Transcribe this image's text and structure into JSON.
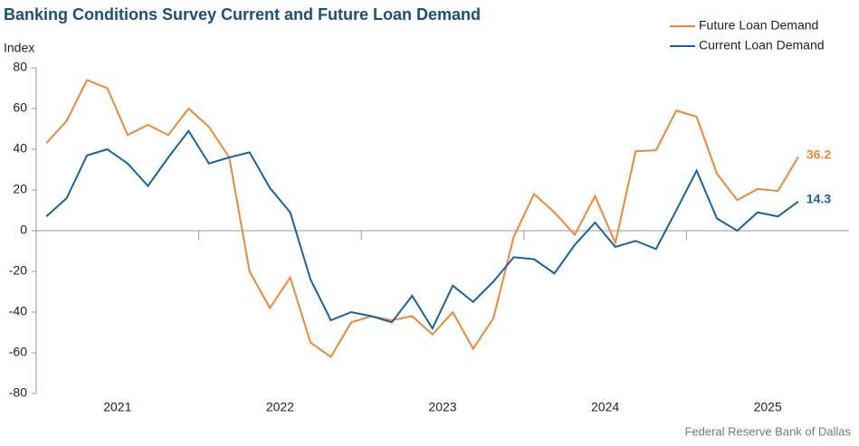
{
  "chart_data": {
    "type": "line",
    "title": "Banking Conditions Survey Current and Future Loan Demand",
    "y_label": "Index",
    "source": "Federal Reserve Bank of Dallas",
    "categories": [
      "2021",
      null,
      null,
      null,
      null,
      null,
      null,
      null,
      "2022",
      null,
      null,
      null,
      null,
      null,
      null,
      null,
      "2023",
      null,
      null,
      null,
      null,
      null,
      null,
      null,
      "2024",
      null,
      null,
      null,
      null,
      null,
      null,
      null,
      "2025",
      null,
      null,
      null,
      null,
      null
    ],
    "series": [
      {
        "name": "Future Loan Demand",
        "color": "#f0883a",
        "values": [
          43,
          54,
          74,
          70,
          47,
          52,
          47,
          60,
          51,
          36,
          -20,
          -38,
          -23,
          -55,
          -62,
          -45,
          -42,
          -44,
          -42,
          -51,
          -40,
          -58,
          -43,
          -3,
          18,
          9,
          -2,
          17,
          -6,
          39,
          39.5,
          59,
          56,
          28,
          15,
          20.5,
          19.5,
          36.2
        ]
      },
      {
        "name": "Current Loan Demand",
        "color": "#1a63a0",
        "values": [
          7,
          16,
          37,
          40,
          33,
          22,
          36,
          49,
          33,
          36,
          38.5,
          21,
          9,
          -24,
          -44,
          -40,
          -42,
          -45,
          -32,
          -48,
          -27,
          -35,
          -25,
          -13,
          -14,
          -21,
          -7,
          4,
          -8,
          -5,
          -9,
          10,
          29.5,
          6,
          0,
          9,
          7,
          14.3
        ]
      }
    ],
    "ylim": [
      -80,
      80
    ],
    "yticks": [
      -80,
      -60,
      -40,
      -20,
      0,
      20,
      40,
      60,
      80
    ],
    "grid": false,
    "legend": "top-right"
  }
}
